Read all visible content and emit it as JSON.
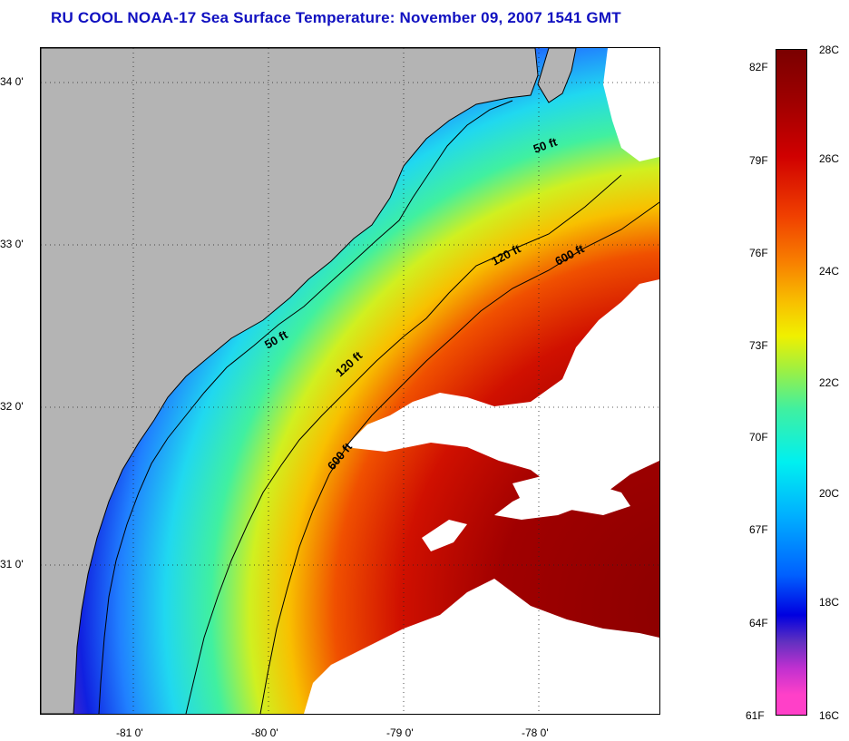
{
  "title": "RU COOL  NOAA-17  Sea Surface Temperature:  November 09, 2007 1541 GMT",
  "map": {
    "lat_labels": [
      "34 0'",
      "33 0'",
      "32 0'",
      "31 0'"
    ],
    "lon_labels": [
      "-81 0'",
      "-80 0'",
      "-79 0'",
      "-78 0'"
    ],
    "isobath_labels": [
      "50 ft",
      "120 ft",
      "600 ft",
      "50 ft",
      "120 ft",
      "600 ft"
    ],
    "colors": {
      "land": "#b4b4b4",
      "cloud": "#ffffff",
      "coast": "#000000"
    }
  },
  "colorbar": {
    "fahrenheit_labels": [
      "82F",
      "79F",
      "76F",
      "73F",
      "70F",
      "67F",
      "64F",
      "61F"
    ],
    "celsius_labels": [
      "28C",
      "26C",
      "24C",
      "22C",
      "20C",
      "18C",
      "16C"
    ],
    "range_c": [
      16,
      28
    ],
    "range_f": [
      61,
      82
    ]
  }
}
